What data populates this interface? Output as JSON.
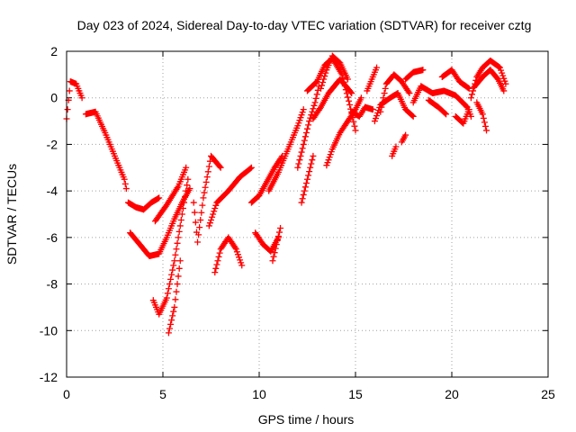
{
  "chart_data": {
    "type": "scatter",
    "title": "Day 023 of 2024, Sidereal Day-to-day VTEC variation (SDTVAR) for receiver cztg",
    "xlabel": "GPS time / hours",
    "ylabel": "SDTVAR / TECUs",
    "xlim": [
      0,
      25
    ],
    "ylim": [
      -12,
      2
    ],
    "xticks": [
      0,
      5,
      10,
      15,
      20,
      25
    ],
    "yticks": [
      -12,
      -10,
      -8,
      -6,
      -4,
      -2,
      0,
      2
    ],
    "grid": true,
    "marker": "+",
    "color": "#ff0000",
    "series": [
      {
        "name": "SDTVAR",
        "tracks": [
          [
            [
              0.0,
              -0.9
            ],
            [
              0.2,
              0.7
            ],
            [
              0.5,
              0.6
            ],
            [
              0.8,
              0.0
            ]
          ],
          [
            [
              1.0,
              -0.7
            ],
            [
              1.5,
              -0.6
            ],
            [
              2.0,
              -1.5
            ],
            [
              2.5,
              -2.5
            ],
            [
              3.0,
              -3.5
            ],
            [
              3.1,
              -3.9
            ]
          ],
          [
            [
              3.2,
              -4.5
            ],
            [
              3.6,
              -4.7
            ],
            [
              4.0,
              -4.8
            ],
            [
              4.4,
              -4.5
            ],
            [
              4.8,
              -4.3
            ]
          ],
          [
            [
              3.3,
              -5.8
            ],
            [
              3.8,
              -6.3
            ],
            [
              4.3,
              -6.8
            ],
            [
              4.8,
              -6.7
            ],
            [
              5.2,
              -6.0
            ],
            [
              5.6,
              -5.2
            ],
            [
              6.0,
              -4.5
            ],
            [
              6.4,
              -3.9
            ]
          ],
          [
            [
              4.5,
              -8.7
            ],
            [
              4.8,
              -9.3
            ],
            [
              5.2,
              -8.6
            ],
            [
              5.6,
              -7.0
            ],
            [
              6.0,
              -5.0
            ],
            [
              6.3,
              -3.5
            ]
          ],
          [
            [
              5.3,
              -10.1
            ],
            [
              5.6,
              -9.0
            ],
            [
              5.9,
              -7.0
            ]
          ],
          [
            [
              4.6,
              -5.3
            ],
            [
              5.2,
              -4.6
            ],
            [
              5.8,
              -3.8
            ],
            [
              6.2,
              -3.0
            ]
          ],
          [
            [
              6.6,
              -4.5
            ],
            [
              6.8,
              -6.2
            ],
            [
              7.1,
              -4.3
            ],
            [
              7.5,
              -2.5
            ],
            [
              8.0,
              -3.0
            ]
          ],
          [
            [
              7.4,
              -5.5
            ],
            [
              7.8,
              -4.5
            ],
            [
              8.4,
              -4.0
            ],
            [
              9.0,
              -3.4
            ],
            [
              9.6,
              -3.0
            ]
          ],
          [
            [
              7.7,
              -7.5
            ],
            [
              8.0,
              -6.5
            ],
            [
              8.4,
              -6.0
            ],
            [
              8.8,
              -6.5
            ],
            [
              9.1,
              -7.2
            ]
          ],
          [
            [
              9.6,
              -4.5
            ],
            [
              10.0,
              -4.2
            ],
            [
              10.4,
              -3.6
            ],
            [
              10.8,
              -3.0
            ],
            [
              11.2,
              -2.5
            ]
          ],
          [
            [
              9.8,
              -5.8
            ],
            [
              10.2,
              -6.3
            ],
            [
              10.6,
              -6.6
            ],
            [
              11.0,
              -6.0
            ]
          ],
          [
            [
              10.5,
              -4.0
            ],
            [
              11.0,
              -3.2
            ],
            [
              11.5,
              -2.2
            ],
            [
              12.0,
              -1.2
            ],
            [
              12.3,
              -0.5
            ]
          ],
          [
            [
              10.7,
              -7.0
            ],
            [
              10.9,
              -6.3
            ],
            [
              11.1,
              -5.6
            ]
          ],
          [
            [
              12.0,
              -3.0
            ],
            [
              12.3,
              -2.0
            ],
            [
              12.6,
              -1.0
            ],
            [
              12.9,
              -0.2
            ],
            [
              13.1,
              0.5
            ]
          ],
          [
            [
              12.2,
              -4.5
            ],
            [
              12.5,
              -3.5
            ],
            [
              12.8,
              -2.5
            ]
          ],
          [
            [
              13.2,
              0.4
            ],
            [
              13.5,
              1.2
            ],
            [
              13.8,
              1.8
            ],
            [
              14.2,
              1.5
            ],
            [
              14.6,
              0.8
            ]
          ],
          [
            [
              12.5,
              0.3
            ],
            [
              13.0,
              0.7
            ],
            [
              13.4,
              1.4
            ],
            [
              13.8,
              1.7
            ],
            [
              14.3,
              1.0
            ],
            [
              14.7,
              -0.3
            ],
            [
              15.0,
              -1.4
            ]
          ],
          [
            [
              12.8,
              -0.9
            ],
            [
              13.2,
              -0.4
            ],
            [
              13.6,
              0.2
            ],
            [
              14.2,
              0.8
            ],
            [
              14.8,
              0.2
            ]
          ],
          [
            [
              13.5,
              -2.9
            ],
            [
              13.8,
              -2.2
            ],
            [
              14.2,
              -1.5
            ],
            [
              14.6,
              -1.0
            ],
            [
              15.0,
              -0.5
            ],
            [
              15.3,
              0.0
            ]
          ],
          [
            [
              14.8,
              -0.6
            ],
            [
              15.2,
              -0.8
            ],
            [
              15.5,
              -0.4
            ],
            [
              15.9,
              -0.5
            ]
          ],
          [
            [
              15.6,
              0.3
            ],
            [
              15.9,
              0.9
            ],
            [
              16.1,
              1.3
            ]
          ],
          [
            [
              16.0,
              -1.0
            ],
            [
              16.3,
              -0.3
            ],
            [
              16.8,
              0.0
            ],
            [
              17.2,
              0.2
            ],
            [
              17.6,
              -0.5
            ],
            [
              18.0,
              -0.8
            ]
          ],
          [
            [
              16.3,
              -0.6
            ],
            [
              16.6,
              0.6
            ],
            [
              17.0,
              1.0
            ],
            [
              17.4,
              0.7
            ],
            [
              17.8,
              0.2
            ]
          ],
          [
            [
              17.6,
              0.8
            ],
            [
              18.0,
              1.1
            ],
            [
              18.5,
              1.2
            ]
          ],
          [
            [
              16.9,
              -2.5
            ],
            [
              17.1,
              -2.1
            ]
          ],
          [
            [
              17.4,
              -1.9
            ],
            [
              17.6,
              -1.6
            ]
          ],
          [
            [
              18.0,
              -0.2
            ],
            [
              18.4,
              0.5
            ],
            [
              19.0,
              0.2
            ],
            [
              19.6,
              0.3
            ],
            [
              20.2,
              0.1
            ],
            [
              20.8,
              -0.4
            ],
            [
              21.0,
              -0.8
            ]
          ],
          [
            [
              18.8,
              -0.1
            ],
            [
              19.3,
              -0.4
            ],
            [
              19.7,
              -0.7
            ]
          ],
          [
            [
              19.5,
              0.9
            ],
            [
              20.0,
              1.2
            ],
            [
              20.4,
              0.7
            ],
            [
              20.9,
              0.4
            ]
          ],
          [
            [
              20.2,
              -0.8
            ],
            [
              20.6,
              -1.1
            ],
            [
              20.9,
              -0.5
            ]
          ],
          [
            [
              21.0,
              0.0
            ],
            [
              21.3,
              0.9
            ],
            [
              21.6,
              1.3
            ],
            [
              22.0,
              1.6
            ],
            [
              22.5,
              1.3
            ],
            [
              22.8,
              0.6
            ]
          ],
          [
            [
              21.2,
              0.5
            ],
            [
              21.6,
              0.9
            ],
            [
              22.0,
              1.2
            ],
            [
              22.4,
              0.8
            ],
            [
              22.7,
              0.3
            ]
          ],
          [
            [
              21.3,
              -0.2
            ],
            [
              21.6,
              -0.7
            ],
            [
              21.8,
              -1.4
            ]
          ]
        ]
      }
    ]
  }
}
